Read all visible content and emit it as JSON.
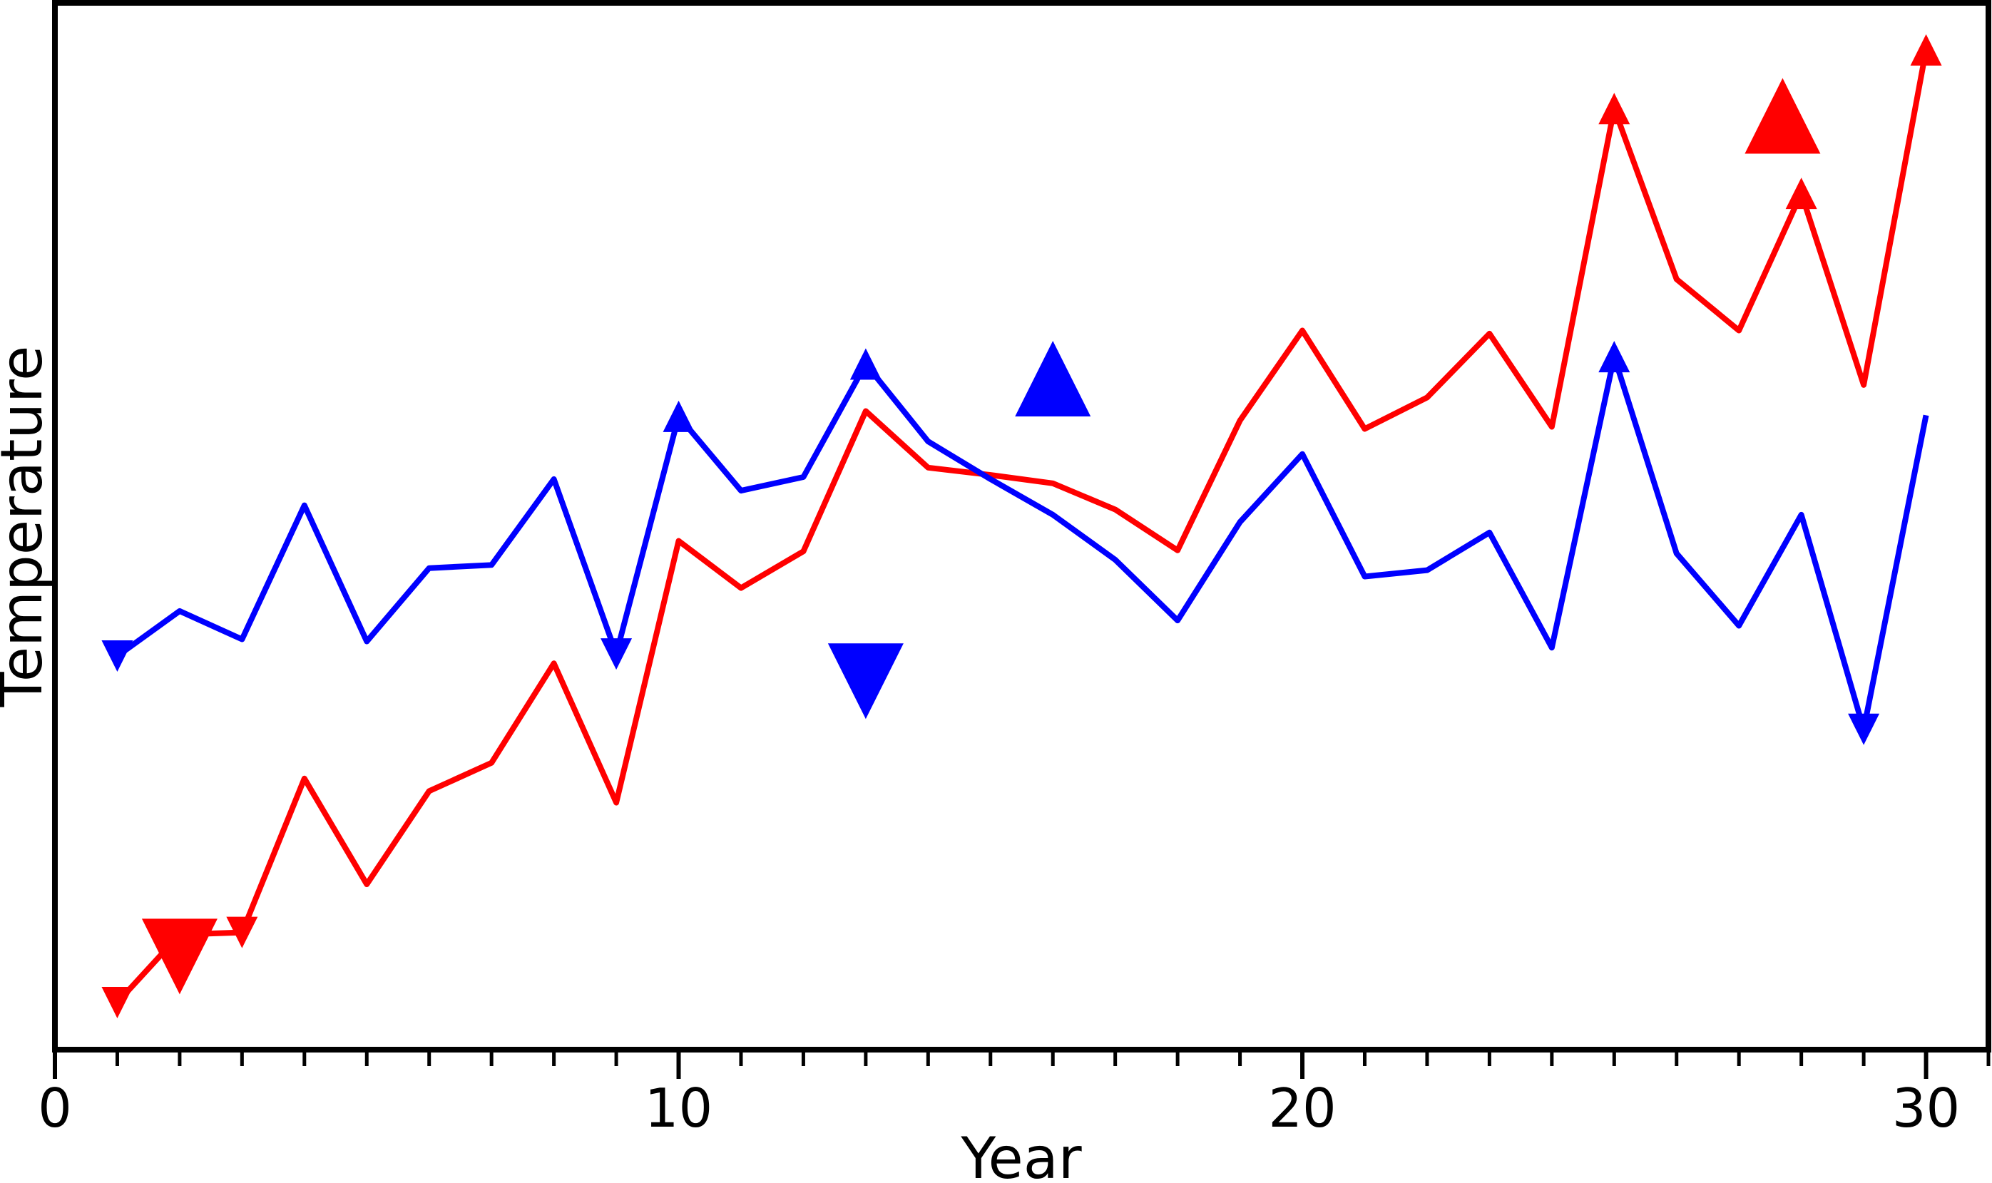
{
  "chart_data": {
    "type": "line",
    "title": "",
    "xlabel": "Year",
    "ylabel": "Temperature",
    "xlim": [
      0,
      31
    ],
    "ylim": [
      0,
      100
    ],
    "grid": false,
    "legend": "none",
    "x_major_ticks": [
      0,
      10,
      20,
      30
    ],
    "x_minor_tick_interval": 1,
    "y_ticks_shown": false,
    "x": [
      1,
      2,
      3,
      4,
      5,
      6,
      7,
      8,
      9,
      10,
      11,
      12,
      13,
      14,
      15,
      16,
      17,
      18,
      19,
      20,
      21,
      22,
      23,
      24,
      25,
      26,
      27,
      28,
      29,
      30
    ],
    "series": [
      {
        "id": "red",
        "color": "#ff0000",
        "values": [
          4.5,
          11.0,
          11.2,
          25.9,
          15.8,
          24.7,
          27.4,
          36.9,
          23.6,
          48.6,
          44.1,
          47.6,
          61.0,
          55.6,
          54.9,
          54.1,
          51.6,
          47.7,
          60.1,
          68.7,
          59.3,
          62.3,
          68.4,
          59.5,
          89.9,
          73.6,
          68.7,
          81.8,
          63.5,
          95.5
        ],
        "point_markers": [
          {
            "year": 1,
            "direction": "down",
            "size": "small"
          },
          {
            "year": 2,
            "direction": "down",
            "size": "small"
          },
          {
            "year": 3,
            "direction": "down",
            "size": "small"
          },
          {
            "year": 25,
            "direction": "up",
            "size": "small"
          },
          {
            "year": 28,
            "direction": "up",
            "size": "small"
          },
          {
            "year": 30,
            "direction": "up",
            "size": "small"
          }
        ]
      },
      {
        "id": "blue",
        "color": "#0000ff",
        "values": [
          37.6,
          41.9,
          39.2,
          52.0,
          39.0,
          46.0,
          46.3,
          54.5,
          37.8,
          60.5,
          53.4,
          54.7,
          65.5,
          58.1,
          54.5,
          51.1,
          46.8,
          41.0,
          50.4,
          56.9,
          45.2,
          45.8,
          49.4,
          38.4,
          66.2,
          47.4,
          40.5,
          51.1,
          30.6,
          60.6
        ],
        "point_markers": [
          {
            "year": 1,
            "direction": "down",
            "size": "small"
          },
          {
            "year": 9,
            "direction": "down",
            "size": "small"
          },
          {
            "year": 29,
            "direction": "down",
            "size": "small"
          },
          {
            "year": 10,
            "direction": "up",
            "size": "small"
          },
          {
            "year": 13,
            "direction": "up",
            "size": "small"
          },
          {
            "year": 25,
            "direction": "up",
            "size": "small"
          }
        ]
      }
    ],
    "event_markers": [
      {
        "series": "red",
        "direction": "down",
        "size": "large",
        "year": 2.0,
        "value": 8.9
      },
      {
        "series": "blue",
        "direction": "down",
        "size": "large",
        "year": 13.0,
        "value": 35.2
      },
      {
        "series": "blue",
        "direction": "up",
        "size": "large",
        "year": 16.0,
        "value": 64.1
      },
      {
        "series": "red",
        "direction": "up",
        "size": "large",
        "year": 27.7,
        "value": 89.2
      }
    ]
  }
}
